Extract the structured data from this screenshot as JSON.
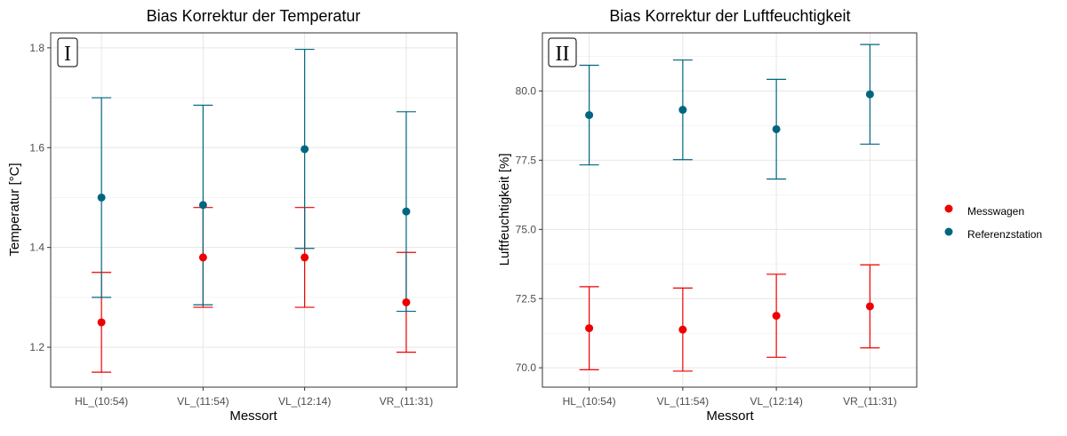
{
  "legend": {
    "entries": [
      {
        "label": "Messwagen",
        "color": "#ee0000"
      },
      {
        "label": "Referenzstation",
        "color": "#006680"
      }
    ]
  },
  "chart_data": [
    {
      "type": "scatter",
      "subtype": "point-with-errorbars",
      "title": "Bias Korrektur der Temperatur",
      "panel_tag": "I",
      "xlabel": "Messort",
      "ylabel": "Temperatur [°C]",
      "categories": [
        "HL_(10:54)",
        "VL_(11:54)",
        "VL_(12:14)",
        "VR_(11:31)"
      ],
      "ylim": [
        1.12,
        1.83
      ],
      "yticks": [
        1.2,
        1.4,
        1.6,
        1.8
      ],
      "ytick_labels": [
        "1.2",
        "1.4",
        "1.6",
        "1.8"
      ],
      "grid": true,
      "legend_position": "right",
      "series": [
        {
          "name": "Messwagen",
          "color": "#ee0000",
          "values": [
            1.25,
            1.38,
            1.38,
            1.29
          ],
          "lower": [
            1.15,
            1.28,
            1.28,
            1.19
          ],
          "upper": [
            1.35,
            1.48,
            1.48,
            1.39
          ]
        },
        {
          "name": "Referenzstation",
          "color": "#006680",
          "values": [
            1.5,
            1.485,
            1.597,
            1.472
          ],
          "lower": [
            1.3,
            1.285,
            1.398,
            1.272
          ],
          "upper": [
            1.7,
            1.685,
            1.797,
            1.672
          ]
        }
      ]
    },
    {
      "type": "scatter",
      "subtype": "point-with-errorbars",
      "title": "Bias Korrektur der Luftfeuchtigkeit",
      "panel_tag": "II",
      "xlabel": "Messort",
      "ylabel": "Luftfeuchtigkeit [%]",
      "categories": [
        "HL_(10:54)",
        "VL_(11:54)",
        "VL_(12:14)",
        "VR_(11:31)"
      ],
      "ylim": [
        69.3,
        82.1
      ],
      "yticks": [
        70.0,
        72.5,
        75.0,
        77.5,
        80.0
      ],
      "ytick_labels": [
        "70.0",
        "72.5",
        "75.0",
        "77.5",
        "80.0"
      ],
      "grid": true,
      "legend_position": "right",
      "series": [
        {
          "name": "Messwagen",
          "color": "#ee0000",
          "values": [
            71.43,
            71.38,
            71.88,
            72.22
          ],
          "lower": [
            69.93,
            69.88,
            70.38,
            70.72
          ],
          "upper": [
            72.93,
            72.88,
            73.38,
            73.72
          ]
        },
        {
          "name": "Referenzstation",
          "color": "#006680",
          "values": [
            79.13,
            79.32,
            78.62,
            79.88
          ],
          "lower": [
            77.33,
            77.52,
            76.82,
            78.08
          ],
          "upper": [
            80.93,
            81.12,
            80.42,
            81.68
          ]
        }
      ]
    }
  ]
}
